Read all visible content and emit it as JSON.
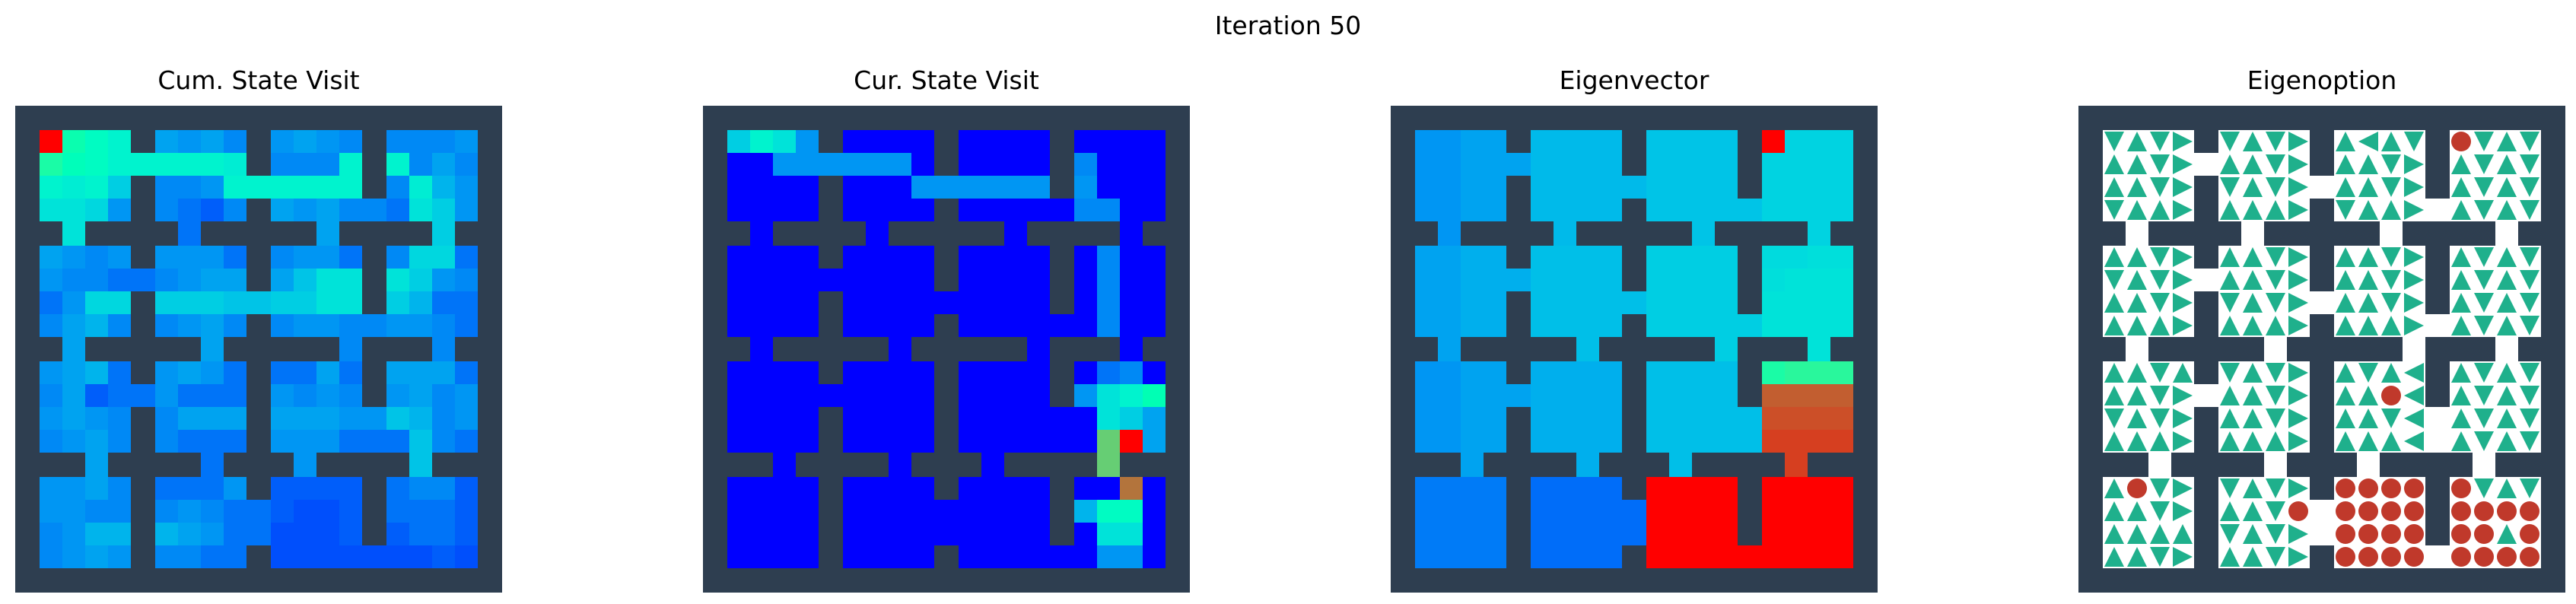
{
  "figure": {
    "title": "Iteration 50",
    "panels": [
      {
        "id": "cum",
        "title": "Cum. State Visit"
      },
      {
        "id": "cur",
        "title": "Cur. State Visit"
      },
      {
        "id": "eigvec",
        "title": "Eigenvector"
      },
      {
        "id": "eigopt",
        "title": "Eigenoption"
      }
    ]
  },
  "chart_data": [
    {
      "type": "heatmap",
      "title": "Cum. State Visit",
      "colormap": "rainbow",
      "wall_color": "#2e3e50",
      "grid": "16x16 cells, 4x4 rooms separated by walls with doorways",
      "values": [
        [
          1.0,
          0.52,
          0.45,
          0.4,
          0.22,
          0.2,
          0.22,
          0.18,
          0.2,
          0.22,
          0.2,
          0.18,
          0.18,
          0.18,
          0.18,
          0.2
        ],
        [
          0.55,
          0.48,
          0.45,
          0.4,
          0.4,
          0.4,
          0.4,
          0.38,
          0.18,
          0.18,
          0.18,
          0.4,
          0.4,
          0.18,
          0.22,
          0.18
        ],
        [
          0.4,
          0.38,
          0.4,
          0.3,
          0.18,
          0.18,
          0.2,
          0.4,
          0.4,
          0.4,
          0.4,
          0.4,
          0.18,
          0.38,
          0.25,
          0.2
        ],
        [
          0.35,
          0.35,
          0.32,
          0.2,
          0.18,
          0.15,
          0.12,
          0.18,
          0.22,
          0.2,
          0.22,
          0.18,
          0.15,
          0.35,
          0.3,
          0.2
        ],
        [
          0.22,
          0.2,
          0.18,
          0.2,
          0.2,
          0.2,
          0.2,
          0.15,
          0.18,
          0.2,
          0.2,
          0.15,
          0.18,
          0.32,
          0.32,
          0.15
        ],
        [
          0.2,
          0.18,
          0.18,
          0.15,
          0.18,
          0.2,
          0.22,
          0.22,
          0.22,
          0.28,
          0.35,
          0.35,
          0.35,
          0.3,
          0.2,
          0.18
        ],
        [
          0.15,
          0.2,
          0.32,
          0.32,
          0.3,
          0.3,
          0.3,
          0.28,
          0.3,
          0.3,
          0.35,
          0.35,
          0.3,
          0.25,
          0.15,
          0.15
        ],
        [
          0.18,
          0.22,
          0.25,
          0.18,
          0.18,
          0.2,
          0.22,
          0.18,
          0.18,
          0.2,
          0.2,
          0.18,
          0.2,
          0.2,
          0.18,
          0.15
        ],
        [
          0.2,
          0.22,
          0.25,
          0.15,
          0.2,
          0.22,
          0.2,
          0.15,
          0.15,
          0.15,
          0.22,
          0.15,
          0.22,
          0.22,
          0.22,
          0.15
        ],
        [
          0.18,
          0.22,
          0.12,
          0.15,
          0.2,
          0.15,
          0.15,
          0.15,
          0.2,
          0.18,
          0.2,
          0.18,
          0.2,
          0.22,
          0.18,
          0.2
        ],
        [
          0.2,
          0.22,
          0.2,
          0.18,
          0.18,
          0.22,
          0.22,
          0.22,
          0.22,
          0.22,
          0.22,
          0.2,
          0.28,
          0.25,
          0.18,
          0.2
        ],
        [
          0.18,
          0.2,
          0.22,
          0.18,
          0.18,
          0.15,
          0.15,
          0.15,
          0.2,
          0.2,
          0.2,
          0.15,
          0.15,
          0.28,
          0.18,
          0.15
        ],
        [
          0.2,
          0.2,
          0.22,
          0.18,
          0.15,
          0.15,
          0.15,
          0.2,
          0.12,
          0.12,
          0.12,
          0.12,
          0.15,
          0.18,
          0.18,
          0.12
        ],
        [
          0.2,
          0.2,
          0.18,
          0.18,
          0.18,
          0.2,
          0.18,
          0.15,
          0.12,
          0.1,
          0.1,
          0.12,
          0.15,
          0.15,
          0.15,
          0.12
        ],
        [
          0.18,
          0.2,
          0.25,
          0.25,
          0.25,
          0.22,
          0.2,
          0.15,
          0.1,
          0.1,
          0.1,
          0.12,
          0.12,
          0.15,
          0.15,
          0.12
        ],
        [
          0.18,
          0.2,
          0.22,
          0.2,
          0.18,
          0.18,
          0.15,
          0.15,
          0.1,
          0.1,
          0.1,
          0.1,
          0.1,
          0.1,
          0.12,
          0.1
        ]
      ]
    },
    {
      "type": "heatmap",
      "title": "Cur. State Visit",
      "colormap": "rainbow",
      "wall_color": "#2e3e50",
      "grid": "16x16 cells, 4x4 rooms separated by walls with doorways",
      "values": [
        [
          0.3,
          0.4,
          0.35,
          0.2,
          0.0,
          0.0,
          0.0,
          0.0,
          0.0,
          0.0,
          0.0,
          0.0,
          0.0,
          0.0,
          0.0,
          0.0
        ],
        [
          0.0,
          0.0,
          0.2,
          0.2,
          0.2,
          0.2,
          0.2,
          0.0,
          0.0,
          0.0,
          0.0,
          0.0,
          0.18,
          0.0,
          0.0,
          0.0
        ],
        [
          0.0,
          0.0,
          0.0,
          0.0,
          0.0,
          0.0,
          0.0,
          0.2,
          0.2,
          0.2,
          0.2,
          0.2,
          0.2,
          0.0,
          0.0,
          0.0
        ],
        [
          0.0,
          0.0,
          0.0,
          0.0,
          0.0,
          0.0,
          0.0,
          0.0,
          0.0,
          0.0,
          0.0,
          0.0,
          0.18,
          0.18,
          0.0,
          0.0
        ],
        [
          0.0,
          0.0,
          0.0,
          0.0,
          0.0,
          0.0,
          0.0,
          0.0,
          0.0,
          0.0,
          0.0,
          0.0,
          0.0,
          0.18,
          0.0,
          0.0
        ],
        [
          0.0,
          0.0,
          0.0,
          0.0,
          0.0,
          0.0,
          0.0,
          0.0,
          0.0,
          0.0,
          0.0,
          0.0,
          0.0,
          0.18,
          0.0,
          0.0
        ],
        [
          0.0,
          0.0,
          0.0,
          0.0,
          0.0,
          0.0,
          0.0,
          0.0,
          0.0,
          0.0,
          0.0,
          0.0,
          0.0,
          0.18,
          0.0,
          0.0
        ],
        [
          0.0,
          0.0,
          0.0,
          0.0,
          0.0,
          0.0,
          0.0,
          0.0,
          0.0,
          0.0,
          0.0,
          0.0,
          0.0,
          0.18,
          0.0,
          0.0
        ],
        [
          0.0,
          0.0,
          0.0,
          0.0,
          0.0,
          0.0,
          0.0,
          0.0,
          0.0,
          0.0,
          0.0,
          0.0,
          0.0,
          0.15,
          0.18,
          0.0
        ],
        [
          0.0,
          0.0,
          0.0,
          0.0,
          0.0,
          0.0,
          0.0,
          0.0,
          0.0,
          0.0,
          0.0,
          0.0,
          0.2,
          0.35,
          0.4,
          0.5
        ],
        [
          0.0,
          0.0,
          0.0,
          0.0,
          0.0,
          0.0,
          0.0,
          0.0,
          0.0,
          0.0,
          0.0,
          0.0,
          0.0,
          0.35,
          0.3,
          0.22
        ],
        [
          0.0,
          0.0,
          0.0,
          0.0,
          0.0,
          0.0,
          0.0,
          0.0,
          0.0,
          0.0,
          0.0,
          0.0,
          0.0,
          0.7,
          1.0,
          0.22
        ],
        [
          0.0,
          0.0,
          0.0,
          0.0,
          0.0,
          0.0,
          0.0,
          0.0,
          0.0,
          0.0,
          0.0,
          0.0,
          0.0,
          0.0,
          0.85,
          0.0
        ],
        [
          0.0,
          0.0,
          0.0,
          0.0,
          0.0,
          0.0,
          0.0,
          0.0,
          0.0,
          0.0,
          0.0,
          0.0,
          0.25,
          0.45,
          0.45,
          0.0
        ],
        [
          0.0,
          0.0,
          0.0,
          0.0,
          0.0,
          0.0,
          0.0,
          0.0,
          0.0,
          0.0,
          0.0,
          0.0,
          0.0,
          0.35,
          0.35,
          0.0
        ],
        [
          0.0,
          0.0,
          0.0,
          0.0,
          0.0,
          0.0,
          0.0,
          0.0,
          0.0,
          0.0,
          0.0,
          0.0,
          0.0,
          0.2,
          0.2,
          0.0
        ]
      ]
    },
    {
      "type": "heatmap",
      "title": "Eigenvector",
      "colormap": "rainbow",
      "wall_color": "#2e3e50",
      "grid": "16x16 cells, 4x4 rooms separated by walls with doorways",
      "values": [
        [
          0.2,
          0.2,
          0.22,
          0.22,
          0.26,
          0.26,
          0.26,
          0.26,
          0.28,
          0.28,
          0.28,
          0.28,
          1.0,
          0.31,
          0.31,
          0.31
        ],
        [
          0.2,
          0.2,
          0.22,
          0.22,
          0.26,
          0.26,
          0.26,
          0.26,
          0.28,
          0.28,
          0.28,
          0.28,
          0.31,
          0.31,
          0.31,
          0.31
        ],
        [
          0.2,
          0.2,
          0.22,
          0.22,
          0.26,
          0.26,
          0.26,
          0.26,
          0.28,
          0.28,
          0.28,
          0.28,
          0.31,
          0.31,
          0.31,
          0.31
        ],
        [
          0.2,
          0.2,
          0.22,
          0.22,
          0.26,
          0.26,
          0.26,
          0.26,
          0.28,
          0.28,
          0.28,
          0.28,
          0.31,
          0.31,
          0.31,
          0.31
        ],
        [
          0.22,
          0.22,
          0.24,
          0.24,
          0.27,
          0.27,
          0.27,
          0.27,
          0.3,
          0.3,
          0.3,
          0.3,
          0.33,
          0.33,
          0.34,
          0.34
        ],
        [
          0.22,
          0.22,
          0.24,
          0.24,
          0.27,
          0.27,
          0.27,
          0.27,
          0.3,
          0.3,
          0.3,
          0.3,
          0.34,
          0.35,
          0.35,
          0.35
        ],
        [
          0.22,
          0.22,
          0.24,
          0.24,
          0.27,
          0.27,
          0.27,
          0.27,
          0.3,
          0.3,
          0.3,
          0.3,
          0.35,
          0.35,
          0.35,
          0.35
        ],
        [
          0.22,
          0.22,
          0.24,
          0.24,
          0.27,
          0.27,
          0.27,
          0.27,
          0.3,
          0.3,
          0.3,
          0.3,
          0.35,
          0.35,
          0.35,
          0.35
        ],
        [
          0.2,
          0.2,
          0.22,
          0.22,
          0.24,
          0.24,
          0.24,
          0.24,
          0.27,
          0.27,
          0.27,
          0.27,
          0.55,
          0.58,
          0.58,
          0.58
        ],
        [
          0.2,
          0.2,
          0.22,
          0.22,
          0.24,
          0.24,
          0.24,
          0.24,
          0.27,
          0.27,
          0.27,
          0.27,
          0.88,
          0.88,
          0.88,
          0.88
        ],
        [
          0.2,
          0.2,
          0.22,
          0.22,
          0.24,
          0.24,
          0.24,
          0.24,
          0.27,
          0.27,
          0.27,
          0.27,
          0.9,
          0.9,
          0.9,
          0.9
        ],
        [
          0.2,
          0.2,
          0.22,
          0.22,
          0.24,
          0.24,
          0.24,
          0.24,
          0.27,
          0.27,
          0.27,
          0.27,
          0.92,
          0.92,
          0.92,
          0.92
        ],
        [
          0.16,
          0.16,
          0.16,
          0.16,
          0.14,
          0.14,
          0.14,
          0.14,
          1.0,
          1.0,
          1.0,
          1.0,
          1.0,
          1.0,
          1.0,
          1.0
        ],
        [
          0.16,
          0.16,
          0.16,
          0.16,
          0.14,
          0.14,
          0.14,
          0.14,
          1.0,
          1.0,
          1.0,
          1.0,
          1.0,
          1.0,
          1.0,
          1.0
        ],
        [
          0.16,
          0.16,
          0.16,
          0.16,
          0.14,
          0.14,
          0.14,
          0.14,
          1.0,
          1.0,
          1.0,
          1.0,
          1.0,
          1.0,
          1.0,
          1.0
        ],
        [
          0.16,
          0.16,
          0.16,
          0.16,
          0.14,
          0.14,
          0.14,
          0.14,
          1.0,
          1.0,
          1.0,
          1.0,
          1.0,
          1.0,
          1.0,
          1.0
        ]
      ]
    },
    {
      "type": "policy_map",
      "title": "Eigenoption",
      "wall_color": "#2e3e50",
      "arrow_color": "#1fb08c",
      "terminal_color": "#c0392b",
      "legend": "U=up, D=down, L=left, R=right, T=terminal state (red dot)",
      "actions": [
        "DUDRDUDRULUDTDUD",
        "UUDRUUDRUUDRUDUD",
        "UUDRDUDRUUDRUDUD",
        "DUURUUURDUURUDUD",
        "UUDRUUDRUUDRUDUD",
        "DUDRUUDRUUDRUDUD",
        "UUDRDUDRUUDRUDUD",
        "UUURUUURUUURUDUD",
        "UUDUDUDRUDULUDUD",
        "UUDRUUDRUUTLUDUD",
        "DUDRUUDRUUDLUDUD",
        "UUURUUURUUULUDUD",
        "UTDRDUDRTTTTTDUD",
        "UUDRUUDTTTTTTTTT",
        "UUUUDUDRTTTTTTUT",
        "UUDRUUDRTTTTTTTT"
      ]
    }
  ]
}
